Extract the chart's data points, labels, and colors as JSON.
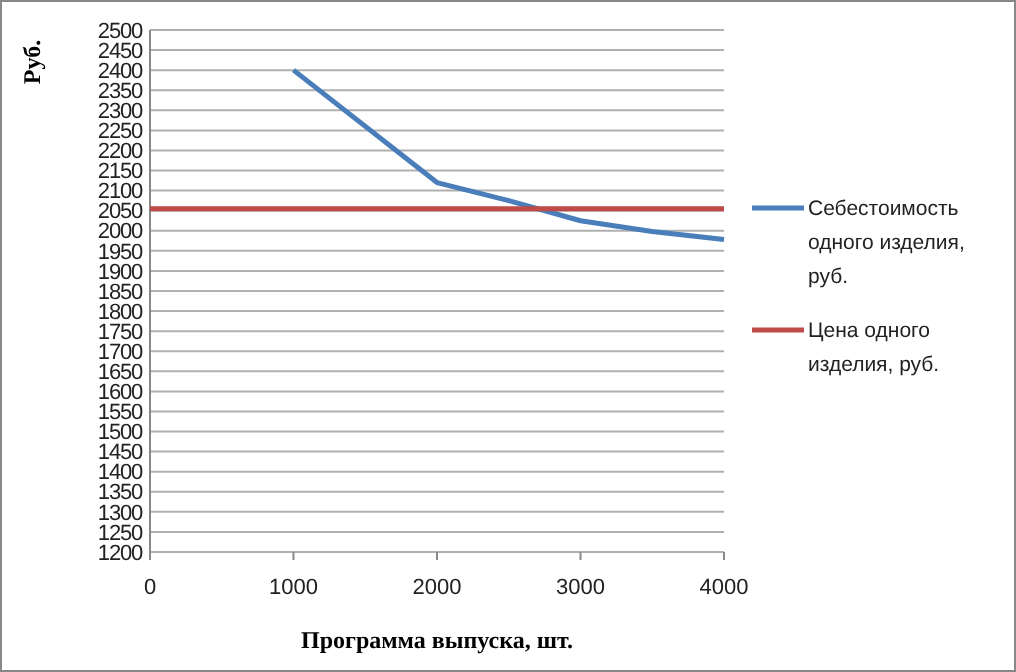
{
  "chart_data": {
    "type": "line",
    "xlabel": "Программа выпуска, шт.",
    "ylabel": "Руб.",
    "xlim": [
      0,
      4000
    ],
    "xticks": [
      0,
      1000,
      2000,
      3000,
      4000
    ],
    "ylim": [
      1200,
      2500
    ],
    "yticks": [
      1200,
      1250,
      1300,
      1350,
      1400,
      1450,
      1500,
      1550,
      1600,
      1650,
      1700,
      1750,
      1800,
      1850,
      1900,
      1950,
      2000,
      2050,
      2100,
      2150,
      2200,
      2250,
      2300,
      2350,
      2400,
      2450,
      2500
    ],
    "grid": "y",
    "legend": "right",
    "marker": "none",
    "line_style": "solid",
    "series": [
      {
        "name": "Себестоимость одного изделия, руб.",
        "color": "#4a7ebb",
        "x": [
          1000,
          2000,
          2500,
          3000,
          3500,
          4000
        ],
        "values": [
          2400,
          2120,
          2075,
          2025,
          1998,
          1978
        ]
      },
      {
        "name": "Цена одного изделия, руб.",
        "color": "#be4b48",
        "x": [
          0,
          4000
        ],
        "values": [
          2055,
          2055
        ]
      }
    ]
  }
}
